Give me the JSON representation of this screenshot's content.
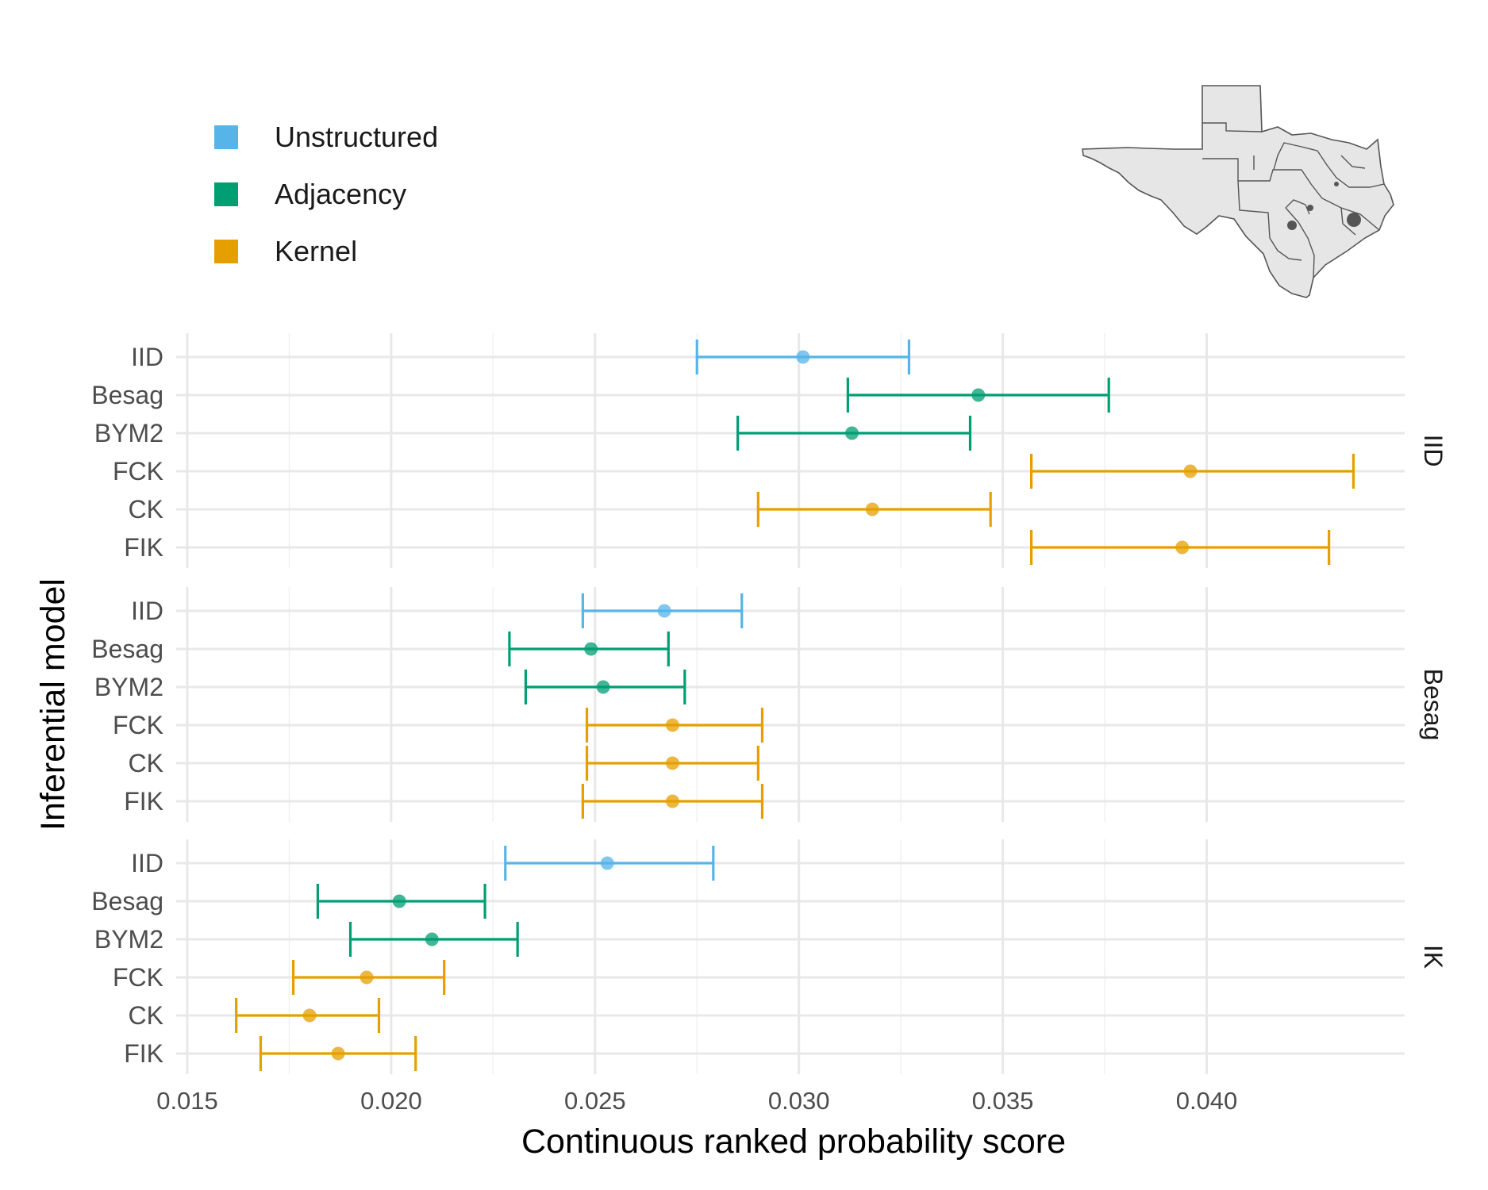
{
  "chart_data": {
    "type": "errorbar",
    "xlabel": "Continuous ranked probability score",
    "ylabel": "Inferential model",
    "xlim": [
      0.0145,
      0.0445
    ],
    "x_ticks": [
      "0.015",
      "0.020",
      "0.025",
      "0.030",
      "0.035",
      "0.040"
    ],
    "grid": true,
    "legend_position": "top-left",
    "legend": [
      {
        "name": "Unstructured",
        "color": "#56B4E9"
      },
      {
        "name": "Adjacency",
        "color": "#009E73"
      },
      {
        "name": "Kernel",
        "color": "#E69F00"
      }
    ],
    "inset_map": "texas-districts-map",
    "categories": [
      "IID",
      "Besag",
      "BYM2",
      "FCK",
      "CK",
      "FIK"
    ],
    "category_group": {
      "IID": "Unstructured",
      "Besag": "Adjacency",
      "BYM2": "Adjacency",
      "FCK": "Kernel",
      "CK": "Kernel",
      "FIK": "Kernel"
    },
    "facets": [
      {
        "label": "IID",
        "points": [
          {
            "model": "IID",
            "mean": 0.0301,
            "low": 0.0275,
            "high": 0.0327
          },
          {
            "model": "Besag",
            "mean": 0.0344,
            "low": 0.0312,
            "high": 0.0376
          },
          {
            "model": "BYM2",
            "mean": 0.0313,
            "low": 0.0285,
            "high": 0.0342
          },
          {
            "model": "FCK",
            "mean": 0.0396,
            "low": 0.0357,
            "high": 0.0436
          },
          {
            "model": "CK",
            "mean": 0.0318,
            "low": 0.029,
            "high": 0.0347
          },
          {
            "model": "FIK",
            "mean": 0.0394,
            "low": 0.0357,
            "high": 0.043
          }
        ]
      },
      {
        "label": "Besag",
        "points": [
          {
            "model": "IID",
            "mean": 0.0267,
            "low": 0.0247,
            "high": 0.0286
          },
          {
            "model": "Besag",
            "mean": 0.0249,
            "low": 0.0229,
            "high": 0.0268
          },
          {
            "model": "BYM2",
            "mean": 0.0252,
            "low": 0.0233,
            "high": 0.0272
          },
          {
            "model": "FCK",
            "mean": 0.0269,
            "low": 0.0248,
            "high": 0.0291
          },
          {
            "model": "CK",
            "mean": 0.0269,
            "low": 0.0248,
            "high": 0.029
          },
          {
            "model": "FIK",
            "mean": 0.0269,
            "low": 0.0247,
            "high": 0.0291
          }
        ]
      },
      {
        "label": "IK",
        "points": [
          {
            "model": "IID",
            "mean": 0.0253,
            "low": 0.0228,
            "high": 0.0279
          },
          {
            "model": "Besag",
            "mean": 0.0202,
            "low": 0.0182,
            "high": 0.0223
          },
          {
            "model": "BYM2",
            "mean": 0.021,
            "low": 0.019,
            "high": 0.0231
          },
          {
            "model": "FCK",
            "mean": 0.0194,
            "low": 0.0176,
            "high": 0.0213
          },
          {
            "model": "CK",
            "mean": 0.018,
            "low": 0.0162,
            "high": 0.0197
          },
          {
            "model": "FIK",
            "mean": 0.0187,
            "low": 0.0168,
            "high": 0.0206
          }
        ]
      }
    ]
  }
}
